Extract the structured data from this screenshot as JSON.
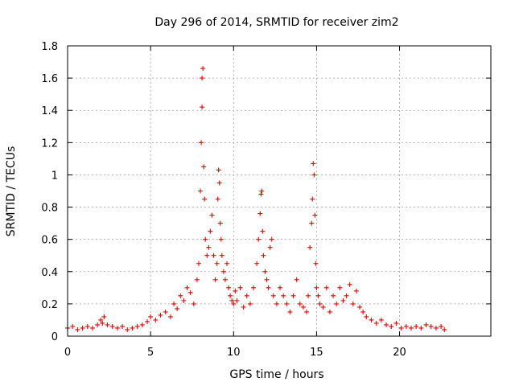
{
  "chart_data": {
    "type": "scatter",
    "title": "Day 296 of 2014, SRMTID for receiver zim2",
    "xlabel": "GPS time / hours",
    "ylabel": "SRMTID / TECUs",
    "xlim": [
      0,
      25.5
    ],
    "ylim": [
      0,
      1.8
    ],
    "x_ticks": [
      "0",
      "5",
      "10",
      "15",
      "20"
    ],
    "y_ticks": [
      "0",
      "0.2",
      "0.4",
      "0.6",
      "0.8",
      "1",
      "1.2",
      "1.4",
      "1.6",
      "1.8"
    ],
    "grid": true,
    "marker": "+",
    "color": "#ee0000",
    "series": [
      {
        "name": "zim2",
        "x": [
          0.0,
          0.3,
          0.6,
          0.9,
          1.2,
          1.5,
          1.8,
          2.0,
          2.1,
          2.2,
          2.4,
          2.7,
          3.0,
          3.3,
          3.6,
          3.9,
          4.2,
          4.5,
          4.8,
          5.0,
          5.3,
          5.6,
          5.9,
          6.2,
          6.4,
          6.6,
          6.8,
          7.0,
          7.2,
          7.4,
          7.6,
          7.8,
          7.9,
          8.0,
          8.05,
          8.1,
          8.1,
          8.15,
          8.2,
          8.25,
          8.3,
          8.4,
          8.5,
          8.6,
          8.7,
          8.8,
          8.9,
          9.0,
          9.05,
          9.1,
          9.15,
          9.2,
          9.25,
          9.3,
          9.4,
          9.5,
          9.6,
          9.7,
          9.8,
          9.9,
          10.0,
          10.1,
          10.2,
          10.4,
          10.6,
          10.8,
          11.0,
          11.2,
          11.4,
          11.5,
          11.6,
          11.65,
          11.7,
          11.75,
          11.8,
          11.9,
          12.0,
          12.1,
          12.2,
          12.3,
          12.4,
          12.6,
          12.8,
          13.0,
          13.2,
          13.4,
          13.6,
          13.8,
          14.0,
          14.2,
          14.4,
          14.5,
          14.6,
          14.7,
          14.75,
          14.8,
          14.85,
          14.9,
          14.95,
          15.0,
          15.1,
          15.2,
          15.4,
          15.6,
          15.8,
          16.0,
          16.2,
          16.4,
          16.6,
          16.8,
          17.0,
          17.2,
          17.4,
          17.6,
          17.8,
          18.0,
          18.3,
          18.6,
          18.9,
          19.2,
          19.5,
          19.8,
          20.1,
          20.4,
          20.7,
          21.0,
          21.3,
          21.6,
          21.9,
          22.2,
          22.5,
          22.7
        ],
        "y": [
          0.05,
          0.06,
          0.04,
          0.05,
          0.06,
          0.05,
          0.07,
          0.1,
          0.08,
          0.12,
          0.07,
          0.06,
          0.05,
          0.06,
          0.04,
          0.05,
          0.06,
          0.07,
          0.09,
          0.12,
          0.1,
          0.13,
          0.15,
          0.12,
          0.2,
          0.17,
          0.25,
          0.22,
          0.3,
          0.27,
          0.2,
          0.35,
          0.45,
          0.9,
          1.2,
          1.42,
          1.6,
          1.66,
          1.05,
          0.85,
          0.6,
          0.5,
          0.55,
          0.65,
          0.75,
          0.5,
          0.35,
          0.45,
          0.85,
          1.03,
          0.95,
          0.7,
          0.6,
          0.5,
          0.4,
          0.35,
          0.45,
          0.3,
          0.25,
          0.22,
          0.2,
          0.28,
          0.22,
          0.3,
          0.18,
          0.25,
          0.2,
          0.3,
          0.45,
          0.6,
          0.76,
          0.88,
          0.9,
          0.65,
          0.5,
          0.4,
          0.35,
          0.3,
          0.55,
          0.6,
          0.25,
          0.2,
          0.3,
          0.25,
          0.2,
          0.15,
          0.25,
          0.35,
          0.2,
          0.18,
          0.15,
          0.25,
          0.55,
          0.7,
          0.85,
          1.07,
          1.0,
          0.75,
          0.45,
          0.3,
          0.25,
          0.2,
          0.18,
          0.3,
          0.15,
          0.25,
          0.2,
          0.3,
          0.22,
          0.25,
          0.32,
          0.2,
          0.28,
          0.18,
          0.15,
          0.12,
          0.1,
          0.08,
          0.1,
          0.07,
          0.06,
          0.08,
          0.05,
          0.06,
          0.05,
          0.06,
          0.05,
          0.07,
          0.06,
          0.05,
          0.06,
          0.04
        ]
      }
    ]
  }
}
